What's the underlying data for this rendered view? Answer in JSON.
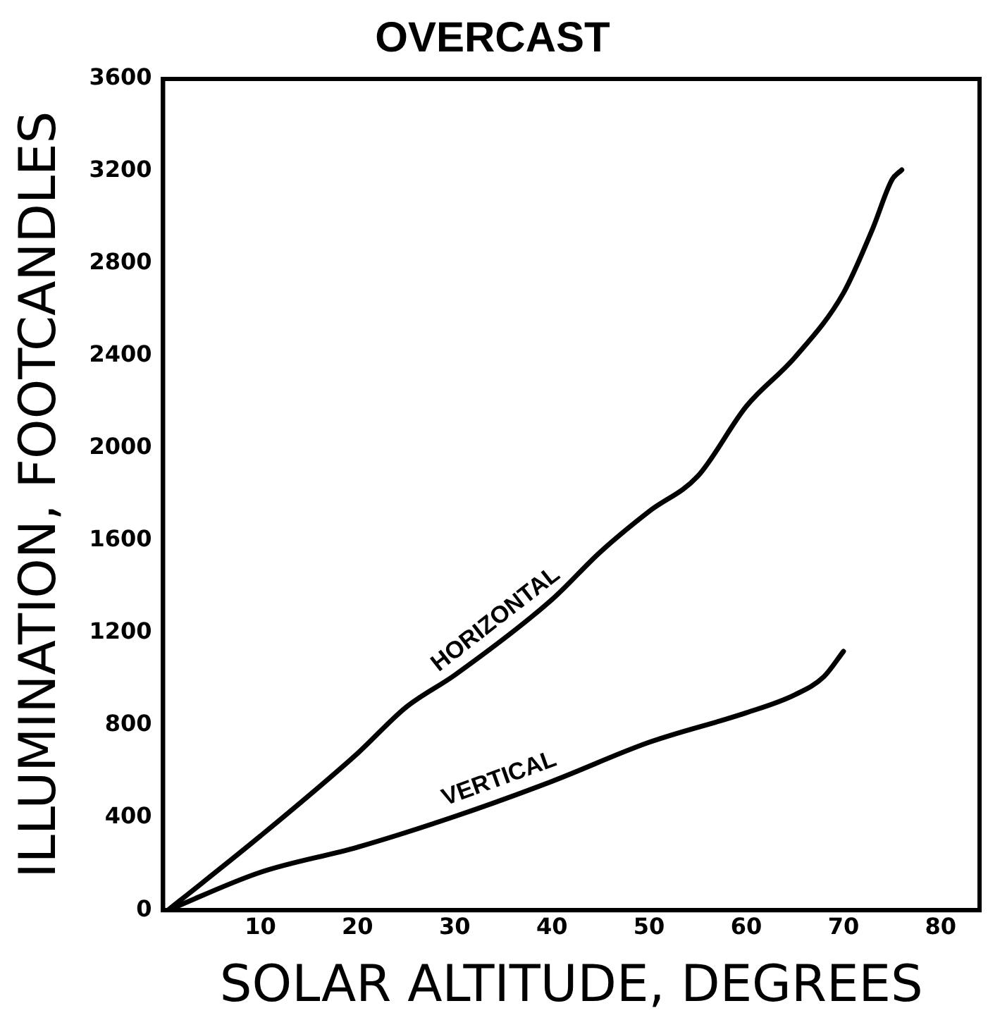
{
  "chart_data": {
    "type": "line",
    "title": "OVERCAST",
    "xlabel": "SOLAR ALTITUDE, DEGREES",
    "ylabel": "ILLUMINATION, FOOTCANDLES",
    "xlim": [
      0,
      84
    ],
    "xticks": [
      10,
      20,
      30,
      40,
      50,
      60,
      70,
      80
    ],
    "ylim": [
      0,
      3600
    ],
    "yticks": [
      0,
      400,
      800,
      1200,
      1600,
      2000,
      2400,
      2800,
      3200,
      3600
    ],
    "grid": false,
    "legend": false,
    "marker": "none",
    "line_style": "solid",
    "series": [
      {
        "name": "HORIZONTAL",
        "color": "#000000",
        "x": [
          0.5,
          10,
          20,
          25,
          30,
          40,
          45,
          50,
          55,
          60,
          65,
          70,
          73,
          75,
          76
        ],
        "values": [
          0,
          321,
          679,
          879,
          1018,
          1345,
          1552,
          1727,
          1879,
          2182,
          2394,
          2673,
          2951,
          3164,
          3206
        ]
      },
      {
        "name": "VERTICAL",
        "color": "#000000",
        "x": [
          0.5,
          10,
          20,
          30,
          40,
          50,
          60,
          65,
          68,
          70
        ],
        "values": [
          0,
          164,
          273,
          406,
          558,
          727,
          855,
          933,
          1012,
          1121
        ]
      }
    ]
  }
}
